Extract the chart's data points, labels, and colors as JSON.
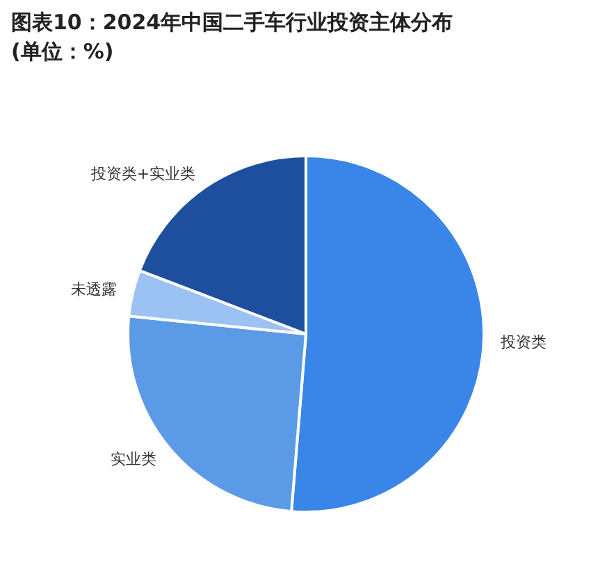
{
  "chart_data": {
    "type": "pie",
    "title": "图表10：2024年中国二手车行业投资主体分布(单位：%)",
    "categories": [
      "投资类",
      "实业类",
      "未透露",
      "投资类+实业类"
    ],
    "values": [
      51.3,
      25.3,
      4.2,
      19.2
    ],
    "colors": [
      "#3a86e8",
      "#5b9be6",
      "#9cc2f4",
      "#1e4f9e"
    ]
  }
}
